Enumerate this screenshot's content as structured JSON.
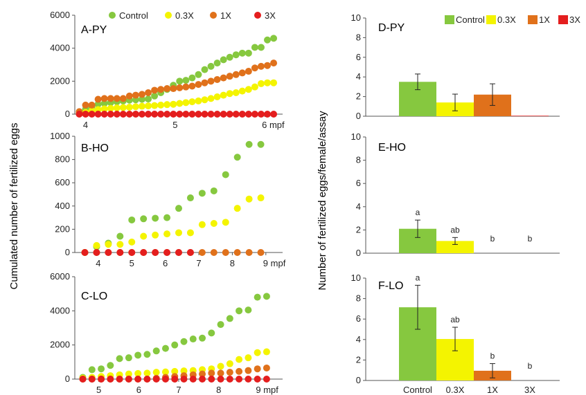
{
  "colors": {
    "Control": "#86c83f",
    "0.3X": "#f4f400",
    "1X": "#e0711b",
    "3X": "#e41e1e"
  },
  "left_ylabel": "Cumulated number of fertilized eggs",
  "right_ylabel": "Number of fertilized eggs/female/assay",
  "legend": [
    "Control",
    "0.3X",
    "1X",
    "3X"
  ],
  "chart_data": [
    {
      "id": "A",
      "type": "scatter",
      "title": "A-PY",
      "xlim": [
        3.88,
        6.2
      ],
      "ylim": [
        0,
        6000
      ],
      "yticks": [
        "0",
        "2000",
        "4000",
        "6000"
      ],
      "xticks": [
        {
          "v": 4,
          "t": "4"
        },
        {
          "v": 5,
          "t": "5"
        },
        {
          "v": 6,
          "t": "6 mpf"
        }
      ],
      "series": [
        {
          "name": "Control",
          "x": [
            3.93,
            4.0,
            4.07,
            4.14,
            4.21,
            4.28,
            4.35,
            4.42,
            4.49,
            4.56,
            4.63,
            4.7,
            4.77,
            4.84,
            4.91,
            4.98,
            5.05,
            5.12,
            5.19,
            5.26,
            5.33,
            5.4,
            5.47,
            5.54,
            5.61,
            5.68,
            5.75,
            5.82,
            5.89,
            5.96,
            6.03,
            6.1
          ],
          "y": [
            100,
            300,
            450,
            600,
            650,
            700,
            750,
            800,
            850,
            870,
            900,
            920,
            1100,
            1300,
            1500,
            1750,
            2000,
            2050,
            2200,
            2400,
            2700,
            2900,
            3100,
            3300,
            3450,
            3600,
            3700,
            3700,
            4050,
            4050,
            4500,
            4600
          ]
        },
        {
          "name": "0.3X",
          "x": [
            3.93,
            4.0,
            4.07,
            4.14,
            4.21,
            4.28,
            4.35,
            4.42,
            4.49,
            4.56,
            4.63,
            4.7,
            4.77,
            4.84,
            4.91,
            4.98,
            5.05,
            5.12,
            5.19,
            5.26,
            5.33,
            5.4,
            5.47,
            5.54,
            5.61,
            5.68,
            5.75,
            5.82,
            5.89,
            5.96,
            6.03,
            6.1
          ],
          "y": [
            50,
            100,
            200,
            280,
            320,
            350,
            380,
            400,
            420,
            450,
            480,
            500,
            520,
            550,
            580,
            600,
            650,
            700,
            750,
            800,
            870,
            950,
            1050,
            1150,
            1250,
            1300,
            1400,
            1500,
            1650,
            1850,
            1900,
            1900
          ]
        },
        {
          "name": "1X",
          "x": [
            3.93,
            4.0,
            4.07,
            4.14,
            4.21,
            4.28,
            4.35,
            4.42,
            4.49,
            4.56,
            4.63,
            4.7,
            4.77,
            4.84,
            4.91,
            4.98,
            5.05,
            5.12,
            5.19,
            5.26,
            5.33,
            5.4,
            5.47,
            5.54,
            5.61,
            5.68,
            5.75,
            5.82,
            5.89,
            5.96,
            6.03,
            6.1
          ],
          "y": [
            150,
            550,
            550,
            900,
            950,
            950,
            950,
            950,
            1100,
            1150,
            1200,
            1300,
            1450,
            1500,
            1550,
            1550,
            1600,
            1650,
            1700,
            1800,
            1900,
            2000,
            2100,
            2200,
            2300,
            2400,
            2500,
            2600,
            2800,
            2900,
            2950,
            3100
          ]
        },
        {
          "name": "3X",
          "x": [
            3.93,
            4.0,
            4.07,
            4.14,
            4.21,
            4.28,
            4.35,
            4.42,
            4.49,
            4.56,
            4.63,
            4.7,
            4.77,
            4.84,
            4.91,
            4.98,
            5.05,
            5.12,
            5.19,
            5.26,
            5.33,
            5.4,
            5.47,
            5.54,
            5.61,
            5.68,
            5.75,
            5.82,
            5.89,
            5.96,
            6.03,
            6.1
          ],
          "y": [
            0,
            0,
            0,
            0,
            0,
            0,
            0,
            0,
            0,
            0,
            0,
            0,
            0,
            0,
            0,
            0,
            0,
            0,
            0,
            0,
            0,
            0,
            0,
            0,
            0,
            0,
            0,
            0,
            0,
            0,
            0,
            0
          ]
        }
      ]
    },
    {
      "id": "B",
      "type": "scatter",
      "title": "B-HO",
      "xlim": [
        3.3,
        9.5
      ],
      "ylim": [
        0,
        1000
      ],
      "yticks": [
        "0",
        "200",
        "400",
        "600",
        "800",
        "1000"
      ],
      "xticks": [
        {
          "v": 4,
          "t": "4"
        },
        {
          "v": 5,
          "t": "5"
        },
        {
          "v": 6,
          "t": "6"
        },
        {
          "v": 7,
          "t": "7"
        },
        {
          "v": 8,
          "t": "8"
        },
        {
          "v": 9,
          "t": "9 mpf"
        }
      ],
      "series": [
        {
          "name": "Control",
          "x": [
            3.6,
            3.95,
            4.3,
            4.65,
            5.0,
            5.35,
            5.7,
            6.05,
            6.4,
            6.75,
            7.1,
            7.45,
            7.8,
            8.15,
            8.5,
            8.85
          ],
          "y": [
            0,
            50,
            80,
            140,
            280,
            290,
            295,
            300,
            380,
            470,
            510,
            530,
            670,
            820,
            930,
            930
          ]
        },
        {
          "name": "0.3X",
          "x": [
            3.6,
            3.95,
            4.3,
            4.65,
            5.0,
            5.35,
            5.7,
            6.05,
            6.4,
            6.75,
            7.1,
            7.45,
            7.8,
            8.15,
            8.5,
            8.85
          ],
          "y": [
            0,
            60,
            70,
            70,
            90,
            140,
            150,
            160,
            170,
            170,
            240,
            250,
            260,
            380,
            460,
            470
          ]
        },
        {
          "name": "1X",
          "x": [
            3.6,
            3.95,
            4.3,
            4.65,
            5.0,
            5.35,
            5.7,
            6.05,
            6.4,
            6.75,
            7.1,
            7.45,
            7.8,
            8.15,
            8.5,
            8.85
          ],
          "y": [
            0,
            0,
            0,
            0,
            0,
            0,
            0,
            0,
            0,
            0,
            0,
            0,
            0,
            0,
            0,
            0
          ]
        },
        {
          "name": "3X",
          "x": [
            3.6,
            3.95,
            4.3,
            4.65,
            5.0,
            5.35,
            5.7,
            6.05,
            6.4,
            6.75
          ],
          "y": [
            0,
            0,
            0,
            0,
            0,
            0,
            0,
            0,
            0,
            0
          ]
        }
      ]
    },
    {
      "id": "C",
      "type": "scatter",
      "title": "C-LO",
      "xlim": [
        4.4,
        9.6
      ],
      "ylim": [
        0,
        6000
      ],
      "yticks": [
        "0",
        "2000",
        "4000",
        "6000"
      ],
      "xticks": [
        {
          "v": 5,
          "t": "5"
        },
        {
          "v": 6,
          "t": "6"
        },
        {
          "v": 7,
          "t": "7"
        },
        {
          "v": 8,
          "t": "8"
        },
        {
          "v": 9,
          "t": "9 mpf"
        }
      ],
      "series": [
        {
          "name": "Control",
          "x": [
            4.6,
            4.83,
            5.06,
            5.29,
            5.52,
            5.75,
            5.98,
            6.21,
            6.44,
            6.67,
            6.9,
            7.13,
            7.36,
            7.59,
            7.82,
            8.05,
            8.28,
            8.51,
            8.74,
            8.97,
            9.2
          ],
          "y": [
            100,
            550,
            600,
            800,
            1200,
            1250,
            1400,
            1450,
            1650,
            1800,
            2000,
            2200,
            2350,
            2400,
            2700,
            3200,
            3550,
            4000,
            4050,
            4800,
            4850
          ]
        },
        {
          "name": "0.3X",
          "x": [
            4.6,
            4.83,
            5.06,
            5.29,
            5.52,
            5.75,
            5.98,
            6.21,
            6.44,
            6.67,
            6.9,
            7.13,
            7.36,
            7.59,
            7.82,
            8.05,
            8.28,
            8.51,
            8.74,
            8.97,
            9.2
          ],
          "y": [
            50,
            100,
            150,
            200,
            250,
            300,
            330,
            350,
            400,
            420,
            450,
            480,
            500,
            550,
            600,
            750,
            900,
            1150,
            1250,
            1550,
            1600
          ]
        },
        {
          "name": "1X",
          "x": [
            4.6,
            4.83,
            5.06,
            5.29,
            5.52,
            5.75,
            5.98,
            6.21,
            6.44,
            6.67,
            6.9,
            7.13,
            7.36,
            7.59,
            7.82,
            8.05,
            8.28,
            8.51,
            8.74,
            8.97,
            9.2
          ],
          "y": [
            0,
            0,
            0,
            0,
            0,
            0,
            0,
            0,
            50,
            100,
            150,
            200,
            250,
            300,
            350,
            350,
            400,
            450,
            500,
            600,
            650
          ]
        },
        {
          "name": "3X",
          "x": [
            4.6,
            4.83,
            5.06,
            5.29,
            5.52,
            5.75,
            5.98,
            6.21,
            6.44,
            6.67,
            6.9,
            7.13,
            7.36,
            7.59,
            7.82,
            8.05,
            8.28,
            8.51,
            8.74,
            8.97,
            9.2
          ],
          "y": [
            0,
            0,
            0,
            0,
            0,
            0,
            0,
            0,
            0,
            0,
            0,
            0,
            0,
            0,
            0,
            0,
            0,
            0,
            0,
            0,
            0
          ]
        }
      ]
    },
    {
      "id": "D",
      "type": "bar",
      "title": "D-PY",
      "ylim": [
        0,
        10
      ],
      "yticks": [
        "0",
        "2",
        "4",
        "6",
        "8",
        "10"
      ],
      "categories": [
        "Control",
        "0.3X",
        "1X",
        "3X"
      ],
      "values": [
        3.5,
        1.4,
        2.2,
        0.05
      ],
      "errors": [
        0.8,
        0.85,
        1.1,
        0
      ],
      "labels": [
        "",
        "",
        "",
        ""
      ],
      "show_xticklabels": false
    },
    {
      "id": "E",
      "type": "bar",
      "title": "E-HO",
      "ylim": [
        0,
        10
      ],
      "yticks": [
        "0",
        "2",
        "4",
        "6",
        "8",
        "10"
      ],
      "categories": [
        "Control",
        "0.3X",
        "1X",
        "3X"
      ],
      "values": [
        2.1,
        1.05,
        0,
        0
      ],
      "errors": [
        0.75,
        0.3,
        0,
        0
      ],
      "labels": [
        "a",
        "ab",
        "b",
        "b"
      ],
      "show_xticklabels": false
    },
    {
      "id": "F",
      "type": "bar",
      "title": "F-LO",
      "ylim": [
        0,
        10
      ],
      "yticks": [
        "0",
        "2",
        "4",
        "6",
        "8",
        "10"
      ],
      "categories": [
        "Control",
        "0.3X",
        "1X",
        "3X"
      ],
      "values": [
        7.15,
        4.05,
        0.95,
        0
      ],
      "errors": [
        2.15,
        1.15,
        0.7,
        0
      ],
      "labels": [
        "a",
        "ab",
        "b",
        "b"
      ],
      "show_xticklabels": true
    }
  ]
}
